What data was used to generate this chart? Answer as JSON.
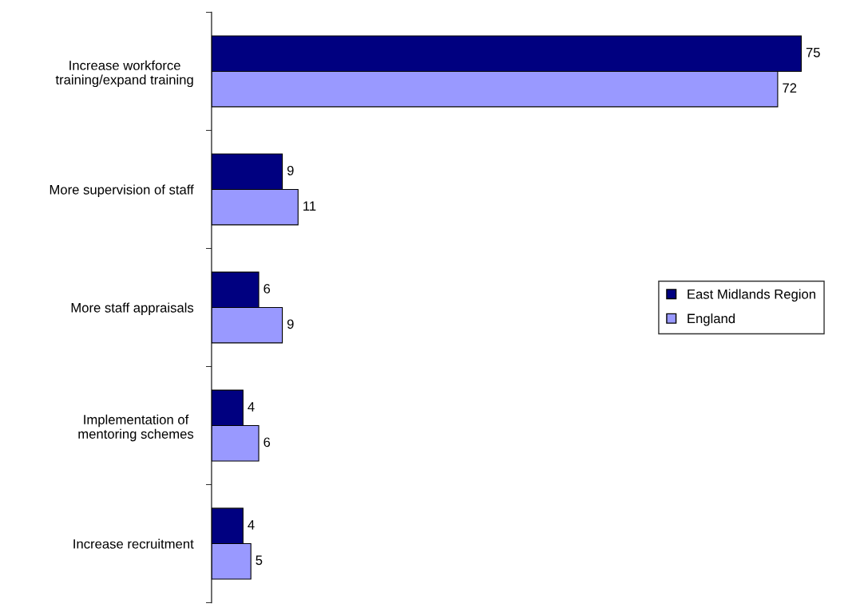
{
  "chart_data": {
    "type": "bar",
    "orientation": "horizontal",
    "categories": [
      "Increase workforce\ntraining/expand training",
      "More supervision of staff",
      "More staff appraisals",
      "Implementation of\nmentoring schemes",
      "Increase recruitment"
    ],
    "series": [
      {
        "name": "East Midlands Region",
        "color": "#000080",
        "values": [
          75,
          9,
          6,
          4,
          4
        ]
      },
      {
        "name": "England",
        "color": "#9999ff",
        "values": [
          72,
          11,
          9,
          6,
          5
        ]
      }
    ],
    "data_labels": true,
    "legend": "right",
    "tick_labels": "y",
    "grid": false
  }
}
